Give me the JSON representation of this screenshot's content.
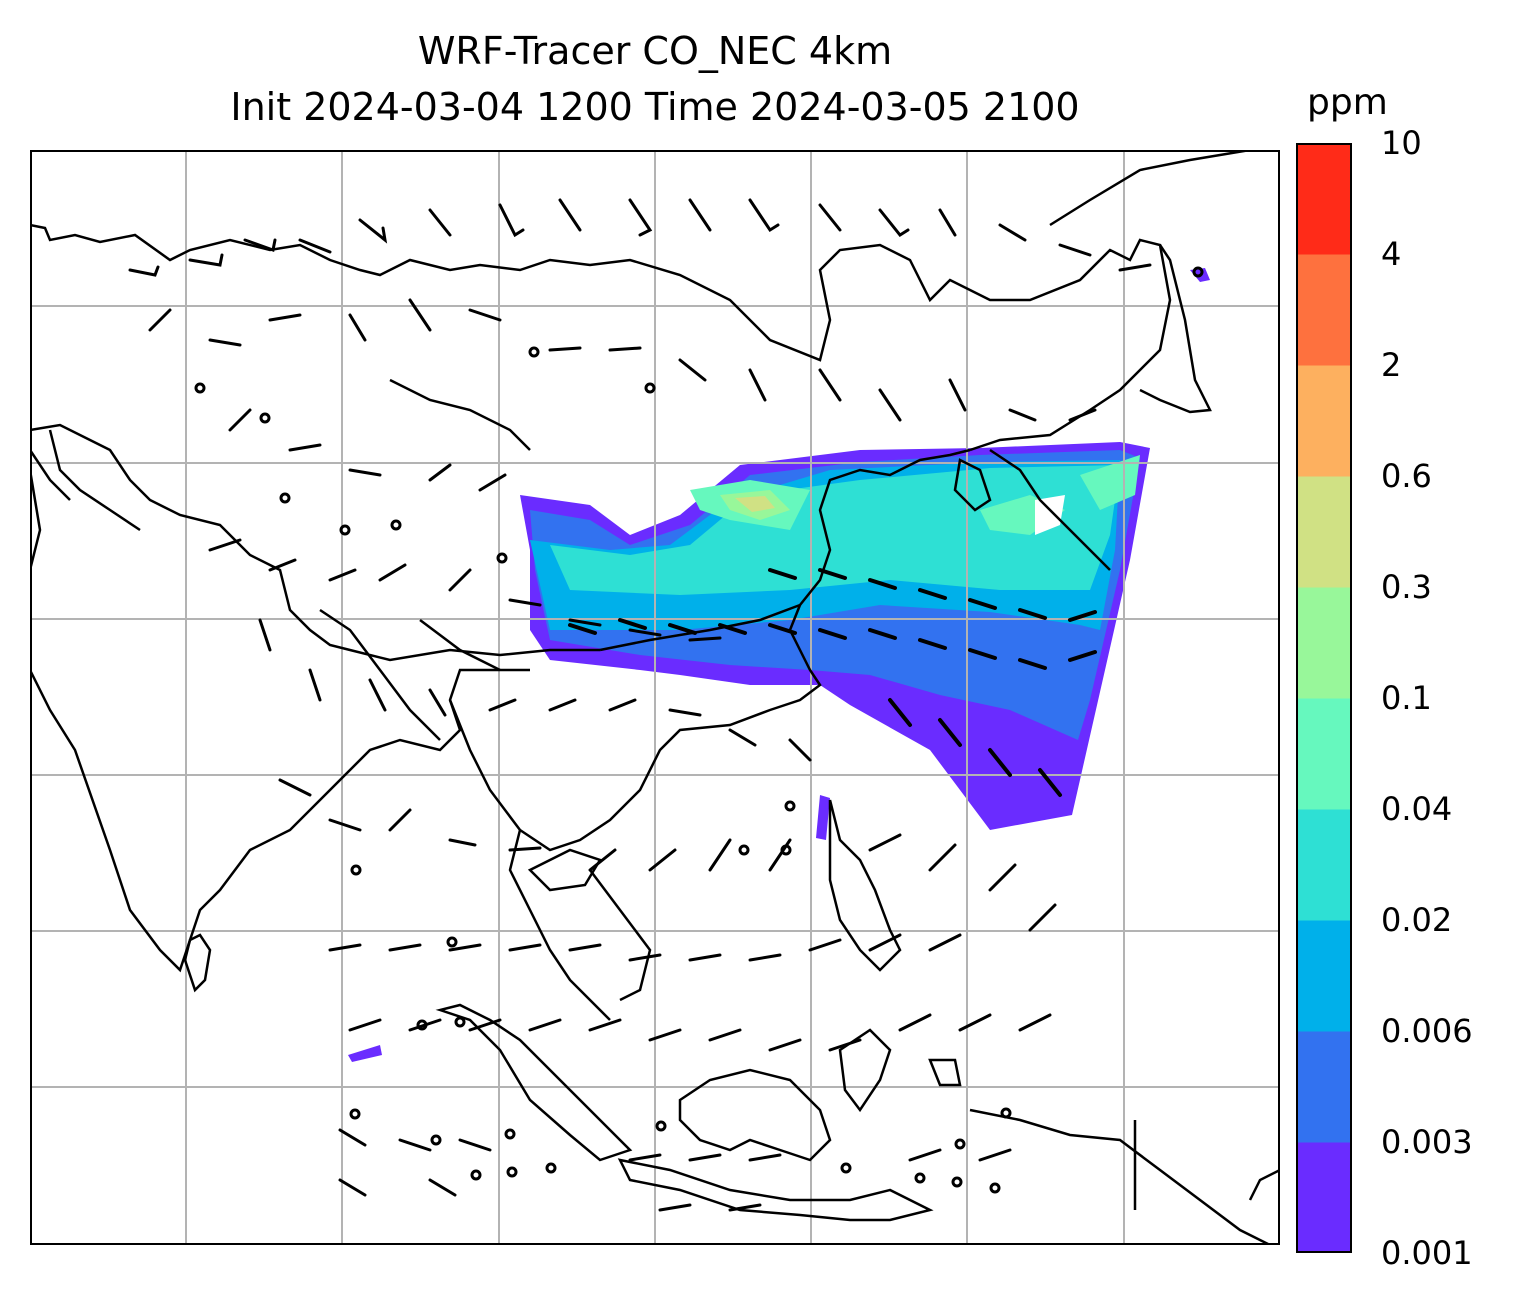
{
  "title_line1": "WRF-Tracer CO_NEC 4km",
  "title_line2": "Init 2024-03-04 1200 Time 2024-03-05 2100",
  "colorbar": {
    "unit": "ppm",
    "tick_labels": [
      "0.001",
      "0.003",
      "0.006",
      "0.02",
      "0.04",
      "0.1",
      "0.3",
      "0.6",
      "2",
      "4",
      "10"
    ],
    "colors": [
      "#6a2cff",
      "#3272f0",
      "#00b0ea",
      "#2ee0d4",
      "#66f8be",
      "#98f79a",
      "#d0e184",
      "#fdb05f",
      "#fe713e",
      "#ff2b18"
    ]
  },
  "map": {
    "projection": "lat-lon grid",
    "gridlines": true,
    "coastlines": true,
    "field": "CO tracer concentration plume over East China Sea / Korea / Japan",
    "wind_barbs": true,
    "colors": {
      "coast": "#000000",
      "grid": "#b3b3b3"
    }
  }
}
